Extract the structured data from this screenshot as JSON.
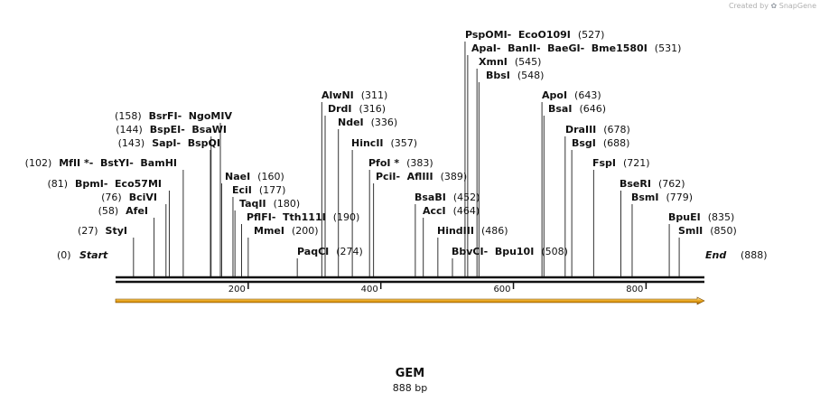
{
  "watermark": {
    "prefix": "Created by",
    "brand": "SnapGene"
  },
  "sequence": {
    "name": "GEM",
    "length_text": "888 bp",
    "length": 888
  },
  "ends": [
    {
      "label": "Start",
      "pos_text": "(0)"
    },
    {
      "label": "End",
      "pos_text": "(888)"
    }
  ],
  "ticks": [
    {
      "value": 200,
      "label": "200"
    },
    {
      "value": 400,
      "label": "400"
    },
    {
      "value": 600,
      "label": "600"
    },
    {
      "value": 800,
      "label": "800"
    }
  ],
  "feature": {
    "name": "orf-arrow",
    "color": "#e8a317",
    "start": 0,
    "end": 888
  },
  "sites": [
    {
      "names": [
        "PspOMI",
        "EcoO109I"
      ],
      "pos": 527,
      "pos_text": "(527)",
      "label_side": "left"
    },
    {
      "names": [
        "ApaI",
        "BanII",
        "BaeGI",
        "Bme1580I"
      ],
      "pos": 531,
      "pos_text": "(531)",
      "label_side": "left"
    },
    {
      "names": [
        "XmnI"
      ],
      "pos": 545,
      "pos_text": "(545)",
      "label_side": "left"
    },
    {
      "names": [
        "BbsI"
      ],
      "pos": 548,
      "pos_text": "(548)",
      "label_side": "left"
    },
    {
      "names": [
        "ApoI"
      ],
      "pos": 643,
      "pos_text": "(643)",
      "label_side": "left"
    },
    {
      "names": [
        "BsaI"
      ],
      "pos": 646,
      "pos_text": "(646)",
      "label_side": "left"
    },
    {
      "names": [
        "DraIII"
      ],
      "pos": 678,
      "pos_text": "(678)",
      "label_side": "left"
    },
    {
      "names": [
        "BsgI"
      ],
      "pos": 688,
      "pos_text": "(688)",
      "label_side": "left"
    },
    {
      "names": [
        "FspI"
      ],
      "pos": 721,
      "pos_text": "(721)",
      "label_side": "left"
    },
    {
      "names": [
        "BseRI"
      ],
      "pos": 762,
      "pos_text": "(762)",
      "label_side": "left"
    },
    {
      "names": [
        "BsmI"
      ],
      "pos": 779,
      "pos_text": "(779)",
      "label_side": "left"
    },
    {
      "names": [
        "BpuEI"
      ],
      "pos": 835,
      "pos_text": "(835)",
      "label_side": "left"
    },
    {
      "names": [
        "SmlI"
      ],
      "pos": 850,
      "pos_text": "(850)",
      "label_side": "left"
    },
    {
      "names": [
        "AlwNI"
      ],
      "pos": 311,
      "pos_text": "(311)",
      "label_side": "left"
    },
    {
      "names": [
        "DrdI"
      ],
      "pos": 316,
      "pos_text": "(316)",
      "label_side": "left"
    },
    {
      "names": [
        "NdeI"
      ],
      "pos": 336,
      "pos_text": "(336)",
      "label_side": "left"
    },
    {
      "names": [
        "HincII"
      ],
      "pos": 357,
      "pos_text": "(357)",
      "label_side": "left"
    },
    {
      "names": [
        "PfoI *"
      ],
      "pos": 383,
      "pos_text": "(383)",
      "label_side": "left"
    },
    {
      "names": [
        "PciI",
        "AflIII"
      ],
      "pos": 389,
      "pos_text": "(389)",
      "label_side": "left"
    },
    {
      "names": [
        "BsaBI"
      ],
      "pos": 452,
      "pos_text": "(452)",
      "label_side": "left"
    },
    {
      "names": [
        "AccI"
      ],
      "pos": 464,
      "pos_text": "(464)",
      "label_side": "left"
    },
    {
      "names": [
        "HindIII"
      ],
      "pos": 486,
      "pos_text": "(486)",
      "label_side": "left"
    },
    {
      "names": [
        "BbvCI",
        "Bpu10I"
      ],
      "pos": 508,
      "pos_text": "(508)",
      "label_side": "left"
    },
    {
      "names": [
        "NaeI"
      ],
      "pos": 160,
      "pos_text": "(160)",
      "label_side": "left"
    },
    {
      "names": [
        "EciI"
      ],
      "pos": 177,
      "pos_text": "(177)",
      "label_side": "left"
    },
    {
      "names": [
        "TaqII"
      ],
      "pos": 180,
      "pos_text": "(180)",
      "label_side": "left"
    },
    {
      "names": [
        "PflFI",
        "Tth111I"
      ],
      "pos": 190,
      "pos_text": "(190)",
      "label_side": "left"
    },
    {
      "names": [
        "MmeI"
      ],
      "pos": 200,
      "pos_text": "(200)",
      "label_side": "left"
    },
    {
      "names": [
        "PaqCI"
      ],
      "pos": 274,
      "pos_text": "(274)",
      "label_side": "left"
    },
    {
      "names": [
        "BsrFI",
        "NgoMIV"
      ],
      "pos": 158,
      "pos_text": "(158)",
      "label_side": "right"
    },
    {
      "names": [
        "BspEI",
        "BsaWI"
      ],
      "pos": 144,
      "pos_text": "(144)",
      "label_side": "right"
    },
    {
      "names": [
        "SapI",
        "BspQI"
      ],
      "pos": 143,
      "pos_text": "(143)",
      "label_side": "right"
    },
    {
      "names": [
        "MfII *",
        "BstYI",
        "BamHI"
      ],
      "pos": 102,
      "pos_text": "(102)",
      "label_side": "right"
    },
    {
      "names": [
        "BpmI",
        "Eco57MI"
      ],
      "pos": 81,
      "pos_text": "(81)",
      "label_side": "right"
    },
    {
      "names": [
        "BciVI"
      ],
      "pos": 76,
      "pos_text": "(76)",
      "label_side": "right"
    },
    {
      "names": [
        "AfeI"
      ],
      "pos": 58,
      "pos_text": "(58)",
      "label_side": "right"
    },
    {
      "names": [
        "StyI"
      ],
      "pos": 27,
      "pos_text": "(27)",
      "label_side": "right"
    }
  ]
}
